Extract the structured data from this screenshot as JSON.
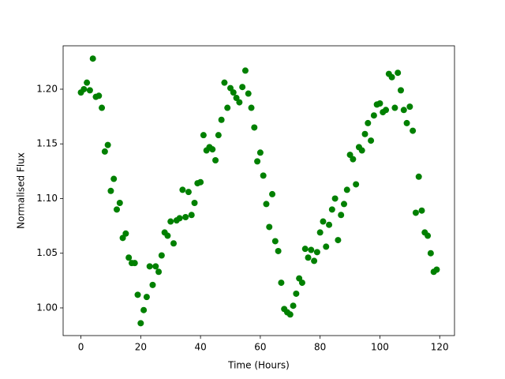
{
  "chart_data": {
    "type": "scatter",
    "x_label": "Time (Hours)",
    "y_label": "Normalised Flux",
    "color": "#008000",
    "x": [
      0,
      1,
      2,
      3,
      4,
      5,
      6,
      7,
      8,
      9,
      10,
      11,
      12,
      13,
      14,
      15,
      16,
      17,
      18,
      19,
      20,
      21,
      22,
      23,
      24,
      25,
      26,
      27,
      28,
      29,
      30,
      31,
      32,
      33,
      34,
      35,
      36,
      37,
      38,
      39,
      40,
      41,
      42,
      43,
      44,
      45,
      46,
      47,
      48,
      49,
      50,
      51,
      52,
      53,
      54,
      55,
      56,
      57,
      58,
      59,
      60,
      61,
      62,
      63,
      64,
      65,
      66,
      67,
      68,
      69,
      70,
      71,
      72,
      73,
      74,
      75,
      76,
      77,
      78,
      79,
      80,
      81,
      82,
      83,
      84,
      85,
      86,
      87,
      88,
      89,
      90,
      91,
      92,
      93,
      94,
      95,
      96,
      97,
      98,
      99,
      100,
      101,
      102,
      103,
      104,
      105,
      106,
      107,
      108,
      109,
      110,
      111,
      112,
      113,
      114,
      115,
      116,
      117,
      118,
      119
    ],
    "values": [
      1.197,
      1.2,
      1.206,
      1.199,
      1.228,
      1.193,
      1.194,
      1.183,
      1.143,
      1.149,
      1.107,
      1.118,
      1.09,
      1.096,
      1.064,
      1.068,
      1.046,
      1.041,
      1.041,
      1.012,
      0.986,
      0.998,
      1.01,
      1.038,
      1.021,
      1.038,
      1.033,
      1.048,
      1.069,
      1.066,
      1.079,
      1.059,
      1.08,
      1.082,
      1.108,
      1.083,
      1.106,
      1.085,
      1.096,
      1.114,
      1.115,
      1.158,
      1.144,
      1.147,
      1.145,
      1.135,
      1.158,
      1.172,
      1.206,
      1.183,
      1.201,
      1.197,
      1.192,
      1.188,
      1.202,
      1.217,
      1.196,
      1.183,
      1.165,
      1.134,
      1.142,
      1.121,
      1.095,
      1.074,
      1.104,
      1.061,
      1.052,
      1.023,
      0.999,
      0.996,
      0.994,
      1.002,
      1.013,
      1.027,
      1.023,
      1.054,
      1.046,
      1.053,
      1.043,
      1.051,
      1.069,
      1.079,
      1.056,
      1.076,
      1.09,
      1.1,
      1.062,
      1.085,
      1.095,
      1.108,
      1.14,
      1.136,
      1.113,
      1.147,
      1.144,
      1.159,
      1.169,
      1.153,
      1.176,
      1.186,
      1.187,
      1.179,
      1.181,
      1.214,
      1.211,
      1.183,
      1.215,
      1.199,
      1.181,
      1.169,
      1.184,
      1.162,
      1.087,
      1.12,
      1.089,
      1.069,
      1.066,
      1.05,
      1.033,
      1.035
    ],
    "xlim": [
      -5.95,
      124.95
    ],
    "xticks": [
      0,
      20,
      40,
      60,
      80,
      100,
      120
    ],
    "ylim": [
      0.9747,
      1.2397
    ],
    "yticks": [
      {
        "value": 1.0,
        "label": "1.00"
      },
      1.05,
      {
        "value": 1.1,
        "label": "1.10"
      },
      1.15,
      {
        "value": 1.2,
        "label": "1.20"
      }
    ]
  }
}
